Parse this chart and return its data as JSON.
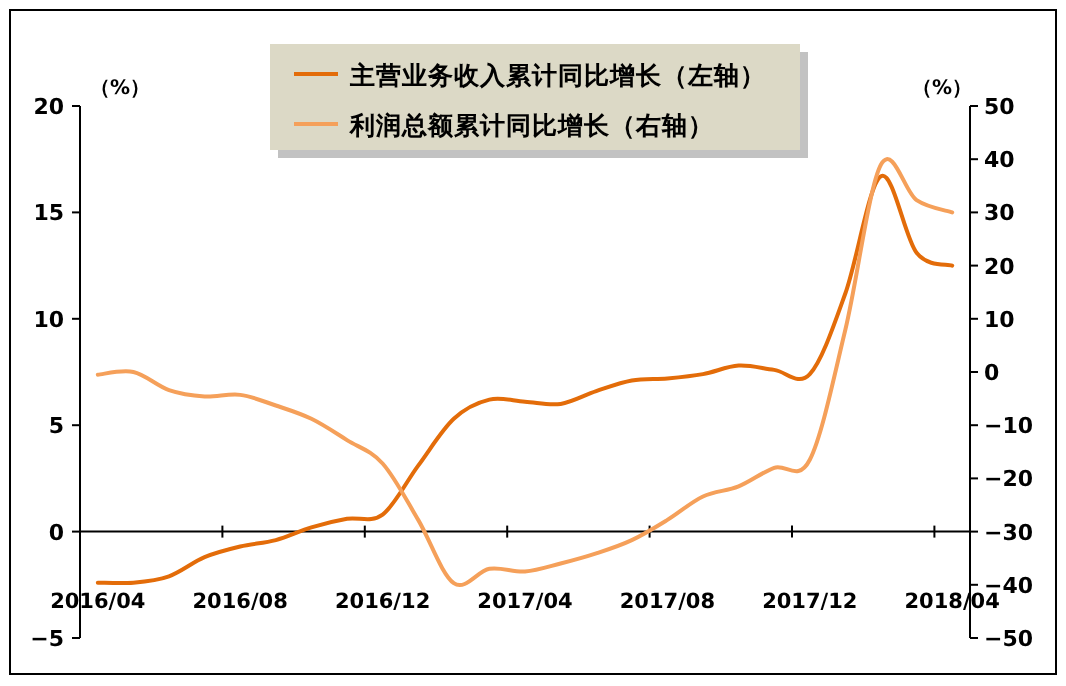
{
  "chart_data": {
    "type": "line",
    "categories": [
      "2016/04",
      null,
      null,
      null,
      "2016/08",
      null,
      null,
      null,
      "2016/12",
      null,
      null,
      null,
      "2017/04",
      null,
      null,
      null,
      "2017/08",
      null,
      null,
      null,
      "2017/12",
      null,
      null,
      null,
      "2018/04"
    ],
    "series": [
      {
        "name": "主营业务收入累计同比增长（左轴）",
        "color": "#e36c09",
        "values": [
          -2.4,
          -2.4,
          -2.1,
          -1.2,
          -0.7,
          -0.4,
          0.2,
          0.6,
          0.8,
          3.1,
          5.3,
          6.2,
          6.1,
          6.0,
          6.6,
          7.1,
          7.2,
          7.4,
          7.8,
          7.6,
          7.4,
          11.2,
          16.7,
          13.1,
          12.5
        ]
      },
      {
        "name": "利润总额累计同比增长（右轴）",
        "color": "#f5a05a",
        "axis": "y2",
        "values": [
          -0.5,
          0,
          -3.4,
          -4.6,
          -4.3,
          -6.3,
          -8.8,
          -12.8,
          -17.2,
          -27.8,
          -39.7,
          -37,
          -37.5,
          -36,
          -34.1,
          -31.6,
          -27.8,
          -23.4,
          -21.5,
          -18,
          -16.5,
          8,
          39,
          32.3,
          30
        ]
      }
    ],
    "ylabel": "（%）",
    "y2label": "（%）",
    "ylim": [
      -5,
      20
    ],
    "yticks": [
      -5,
      0,
      5,
      10,
      15,
      20
    ],
    "y2lim": [
      -50,
      50
    ],
    "y2ticks": [
      -50,
      -40,
      -30,
      -20,
      -10,
      0,
      10,
      20,
      30,
      40,
      50
    ],
    "legend": "top"
  }
}
